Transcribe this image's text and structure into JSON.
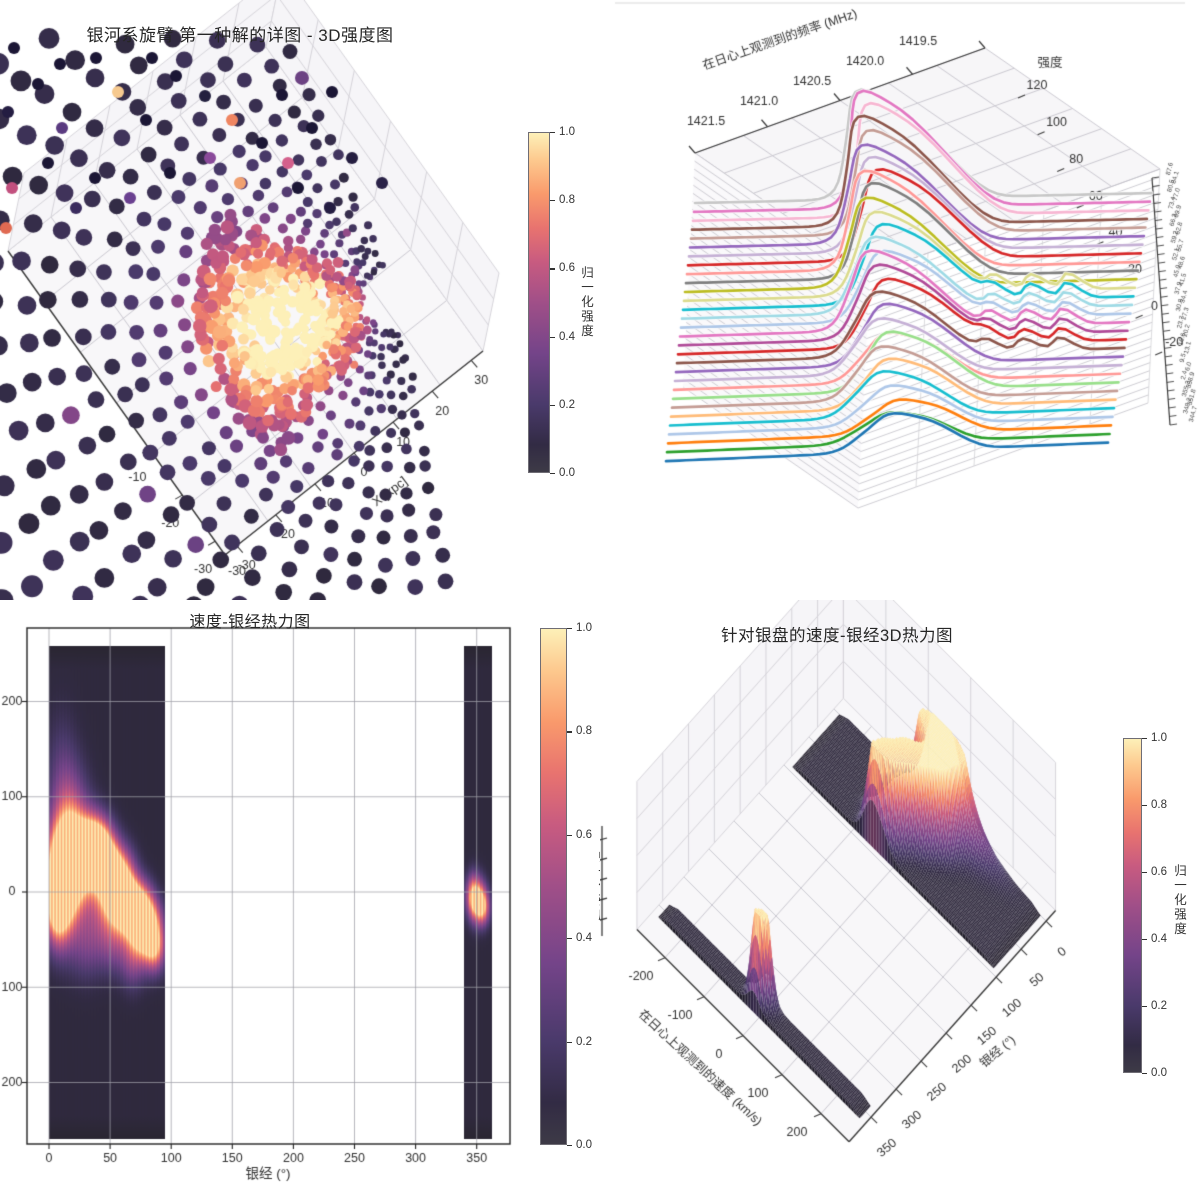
{
  "figure": {
    "background": "#ffffff"
  },
  "colors": {
    "magma_stops": [
      [
        0,
        "#2a2632"
      ],
      [
        0.08,
        "#322b44"
      ],
      [
        0.2,
        "#4a3a6b"
      ],
      [
        0.35,
        "#744489"
      ],
      [
        0.5,
        "#a04f88"
      ],
      [
        0.62,
        "#c85b80"
      ],
      [
        0.72,
        "#e8736f"
      ],
      [
        0.82,
        "#f99a6c"
      ],
      [
        0.92,
        "#fdc98e"
      ],
      [
        1,
        "#fdf0b8"
      ]
    ],
    "colorbar_bottom": "#3d3a46",
    "grid": "#cbc9d1",
    "wall_grid": "#d6d4da",
    "spine": "#3a3a3a",
    "text": "#333333",
    "dark_dot": "#1b1635"
  },
  "chart_data": [
    {
      "id": "tl",
      "type": "scatter",
      "projection": "3d",
      "title": "银河系旋臂 第一种解的详图 - 3D强度图",
      "xlabel": "X [kpc]",
      "x_ticks": [
        "-30",
        "-20",
        "-10",
        "0",
        "10",
        "20",
        "30"
      ],
      "y_ticks_visible": [
        "-10",
        "-20",
        "-30"
      ],
      "corner_tick": "-30",
      "xlim": [
        -33,
        33
      ],
      "ylim": [
        -33,
        33
      ],
      "colorbar": {
        "label": "归一化强度",
        "ticks": [
          "1.0",
          "0.8",
          "0.6",
          "0.4",
          "0.2",
          "0.0"
        ]
      },
      "description": "3D scatter of spiral-arm solution; dense fan of dark low-intensity points radiating from galactic center region, bright magma-colored arm cluster near middle",
      "fan": {
        "rays": 28,
        "dots_per_ray": 24,
        "angle_start_deg": 80,
        "angle_step_deg": 6.2,
        "bright_center_angle_deg": 166,
        "bright_center_radius": 112
      },
      "cluster": {
        "count": 430,
        "angle_range_deg": [
          126,
          208
        ],
        "radius_range": [
          40,
          195
        ]
      },
      "outliers": [
        [
          14,
          48,
          "#1b1635"
        ],
        [
          38,
          84,
          "#1b1635"
        ],
        [
          8,
          112,
          "#241d42"
        ],
        [
          60,
          64,
          "#1b1635"
        ],
        [
          96,
          58,
          "#1b1635"
        ],
        [
          118,
          92,
          "#f6c98f"
        ],
        [
          146,
          120,
          "#1b1635"
        ],
        [
          176,
          76,
          "#1b1635"
        ],
        [
          205,
          96,
          "#23203f"
        ],
        [
          232,
          120,
          "#ef8561"
        ],
        [
          262,
          143,
          "#1b1635"
        ],
        [
          288,
          163,
          "#d4608c"
        ],
        [
          210,
          158,
          "#8a4a9a"
        ],
        [
          170,
          173,
          "#1b1635"
        ],
        [
          62,
          128,
          "#5a3a80"
        ],
        [
          12,
          188,
          "#c2507e"
        ],
        [
          6,
          228,
          "#e06a52"
        ],
        [
          95,
          178,
          "#1b1635"
        ],
        [
          130,
          198,
          "#6a4090"
        ],
        [
          240,
          183,
          "#f0a070"
        ],
        [
          298,
          188,
          "#1b1635"
        ],
        [
          330,
          208,
          "#241d42"
        ],
        [
          48,
          163,
          "#1b1635"
        ],
        [
          76,
          208,
          "#3a2b5e"
        ],
        [
          282,
          95,
          "#1b1635"
        ],
        [
          312,
          128,
          "#1b1635"
        ],
        [
          352,
          158,
          "#241d40"
        ],
        [
          382,
          183,
          "#2a2248"
        ],
        [
          152,
          58,
          "#1b1635"
        ],
        [
          332,
          92,
          "#1b1635"
        ]
      ]
    },
    {
      "id": "tr",
      "type": "line",
      "projection": "3d-waterfall",
      "title": "",
      "freq_label": "在日心上观测到的频率 (MHz)",
      "freq_ticks": [
        "1421.5",
        "1421.0",
        "1420.5",
        "1420.0",
        "1419.5"
      ],
      "intensity_label": "强度",
      "intensity_ticks": [
        "120",
        "100",
        "80",
        "60",
        "40",
        "20",
        "0",
        "-20"
      ],
      "ylim": [
        -20,
        120
      ],
      "xlim_mhz": [
        1421.5,
        1419.5
      ],
      "lon_tick_labels": [
        "87.6",
        "84.1",
        "80.5",
        "77.0",
        "73.4",
        "69.9",
        "66.3",
        "62.8",
        "59.2",
        "55.7",
        "52.1",
        "48.6",
        "45.0",
        "41.5",
        "37.9",
        "34.4",
        "30.8",
        "27.3",
        "23.7",
        "20.2",
        "16.6",
        "13.1",
        "9.5",
        "6.0",
        "2.4",
        "358.9",
        "355.3",
        "351.8",
        "348.2",
        "344.7"
      ],
      "series": [
        {
          "lon": "87.6",
          "color": "#c7c7c7",
          "peak_mhz": 1420.55,
          "amp": 58
        },
        {
          "lon": "84.1",
          "color": "#e377c2",
          "peak_mhz": 1420.52,
          "amp": 62
        },
        {
          "lon": "80.5",
          "color": "#f7b6d2",
          "peak_mhz": 1420.49,
          "amp": 60
        },
        {
          "lon": "77.0",
          "color": "#8c564b",
          "peak_mhz": 1420.53,
          "amp": 58
        },
        {
          "lon": "73.4",
          "color": "#c49c94",
          "peak_mhz": 1420.5,
          "amp": 55
        },
        {
          "lon": "69.9",
          "color": "#9467bd",
          "peak_mhz": 1420.53,
          "amp": 52
        },
        {
          "lon": "66.3",
          "color": "#c5b0d5",
          "peak_mhz": 1420.5,
          "amp": 50
        },
        {
          "lon": "62.8",
          "color": "#d62728",
          "peak_mhz": 1420.47,
          "amp": 48
        },
        {
          "lon": "59.2",
          "color": "#ff9896",
          "peak_mhz": 1420.51,
          "amp": 52
        },
        {
          "lon": "55.7",
          "color": "#7f7f7f",
          "peak_mhz": 1420.48,
          "amp": 50
        },
        {
          "lon": "52.1",
          "color": "#bcbd22",
          "peak_mhz": 1420.51,
          "amp": 47
        },
        {
          "lon": "48.6",
          "color": "#dbdb8d",
          "peak_mhz": 1420.48,
          "amp": 44,
          "tail": true
        },
        {
          "lon": "45.0",
          "color": "#17becf",
          "peak_mhz": 1420.45,
          "amp": 42,
          "tail": true
        },
        {
          "lon": "41.5",
          "color": "#9edae5",
          "peak_mhz": 1420.49,
          "amp": 40,
          "tail": true
        },
        {
          "lon": "37.9",
          "color": "#aec7e8",
          "peak_mhz": 1420.46,
          "amp": 37,
          "tail": true
        },
        {
          "lon": "34.4",
          "color": "#e377c2",
          "peak_mhz": 1420.49,
          "amp": 42,
          "tail": true
        },
        {
          "lon": "30.8",
          "color": "#b04a98",
          "peak_mhz": 1420.46,
          "amp": 39,
          "tail": true
        },
        {
          "lon": "27.3",
          "color": "#d62728",
          "peak_mhz": 1420.43,
          "amp": 36,
          "tail": true
        },
        {
          "lon": "23.7",
          "color": "#8c564b",
          "peak_mhz": 1420.47,
          "amp": 34,
          "tail": true
        },
        {
          "lon": "20.2",
          "color": "#9467bd",
          "peak_mhz": 1420.44,
          "amp": 32
        },
        {
          "lon": "16.6",
          "color": "#c5b0d5",
          "peak_mhz": 1420.47,
          "amp": 29
        },
        {
          "lon": "13.1",
          "color": "#ff9896",
          "peak_mhz": 1420.44,
          "amp": 26
        },
        {
          "lon": "9.5",
          "color": "#98df8a",
          "peak_mhz": 1420.41,
          "amp": 31
        },
        {
          "lon": "6.0",
          "color": "#c49c94",
          "peak_mhz": 1420.45,
          "amp": 28
        },
        {
          "lon": "2.4",
          "color": "#ffbb78",
          "peak_mhz": 1420.42,
          "amp": 26
        },
        {
          "lon": "358.9",
          "color": "#17becf",
          "peak_mhz": 1420.45,
          "amp": 24
        },
        {
          "lon": "355.3",
          "color": "#aec7e8",
          "peak_mhz": 1420.42,
          "amp": 21
        },
        {
          "lon": "351.8",
          "color": "#ff7f0e",
          "peak_mhz": 1420.39,
          "amp": 18
        },
        {
          "lon": "348.2",
          "color": "#2ca02c",
          "peak_mhz": 1420.43,
          "amp": 16
        },
        {
          "lon": "344.7",
          "color": "#1f77b4",
          "peak_mhz": 1420.4,
          "amp": 20
        }
      ]
    },
    {
      "id": "bl",
      "type": "heatmap",
      "title": "速度-银经热力图",
      "xlabel": "银经 (°)",
      "x_ticks": [
        "0",
        "50",
        "100",
        "150",
        "200",
        "250",
        "300",
        "350"
      ],
      "y_tick_labels_displayed": [
        "200",
        "100",
        "0",
        "100",
        "200"
      ],
      "y_tick_values": [
        200,
        100,
        0,
        -100,
        -200
      ],
      "xlim": [
        -18,
        378
      ],
      "ylim": [
        -270,
        272
      ],
      "colorbar": {
        "label": "归一化强度",
        "ticks": [
          "1.0",
          "0.8",
          "0.6",
          "0.4",
          "0.2",
          "0.0"
        ]
      },
      "bands": [
        {
          "l_range": [
            0,
            94
          ],
          "v_range": [
            -258,
            258
          ]
        },
        {
          "l_range": [
            340,
            362
          ],
          "v_range": [
            -258,
            258
          ]
        }
      ],
      "base_intensity": 0.055,
      "hotspots_band1": [
        [
          6,
          -12,
          7,
          30,
          0.95
        ],
        [
          14,
          8,
          8,
          38,
          0.8
        ],
        [
          22,
          25,
          8,
          30,
          0.55
        ],
        [
          30,
          42,
          9,
          26,
          0.78
        ],
        [
          38,
          46,
          8,
          22,
          1.0
        ],
        [
          46,
          32,
          8,
          24,
          0.82
        ],
        [
          52,
          12,
          7,
          22,
          0.6
        ],
        [
          58,
          -4,
          8,
          24,
          0.88
        ],
        [
          66,
          -12,
          7,
          20,
          0.8
        ],
        [
          72,
          -28,
          7,
          22,
          0.75
        ],
        [
          80,
          -42,
          7,
          22,
          0.82
        ],
        [
          87,
          -58,
          6,
          18,
          0.65
        ],
        [
          20,
          75,
          10,
          40,
          0.35
        ],
        [
          10,
          115,
          9,
          48,
          0.22
        ],
        [
          30,
          -55,
          10,
          26,
          0.28
        ],
        [
          52,
          -55,
          9,
          22,
          0.3
        ],
        [
          68,
          -70,
          7,
          22,
          0.35
        ],
        [
          14,
          48,
          8,
          34,
          0.45
        ],
        [
          4,
          25,
          6,
          34,
          0.55
        ],
        [
          44,
          -15,
          12,
          26,
          0.4
        ],
        [
          62,
          28,
          7,
          18,
          0.25
        ],
        [
          78,
          -8,
          6,
          16,
          0.3
        ],
        [
          86,
          -25,
          6,
          16,
          0.28
        ]
      ],
      "hotspots_band2": [
        [
          350,
          -8,
          5,
          16,
          0.88
        ],
        [
          355,
          -16,
          4,
          13,
          0.6
        ],
        [
          346,
          -2,
          4,
          16,
          0.45
        ]
      ]
    },
    {
      "id": "br",
      "type": "surface",
      "projection": "3d",
      "title": "针对银盘的速度-银经3D热力图",
      "v_label": "在日心上观测到的速度 (km/s)",
      "v_ticks": [
        "-200",
        "-100",
        "0",
        "100",
        "200"
      ],
      "l_label": "银经 (°)",
      "l_ticks": [
        "0",
        "50",
        "100",
        "150",
        "200",
        "250",
        "300",
        "350"
      ],
      "colorbar": {
        "label": "归一化强度",
        "ticks": [
          "1.0",
          "0.8",
          "0.6",
          "0.4",
          "0.2",
          "0.0"
        ]
      },
      "description": "3D relief of the velocity-longitude map: two dark ribbons (l 0-94 and l 340-362) with magma-colored peaks near v≈0-60 km/s",
      "uses_hotspots_of": "bl"
    }
  ]
}
